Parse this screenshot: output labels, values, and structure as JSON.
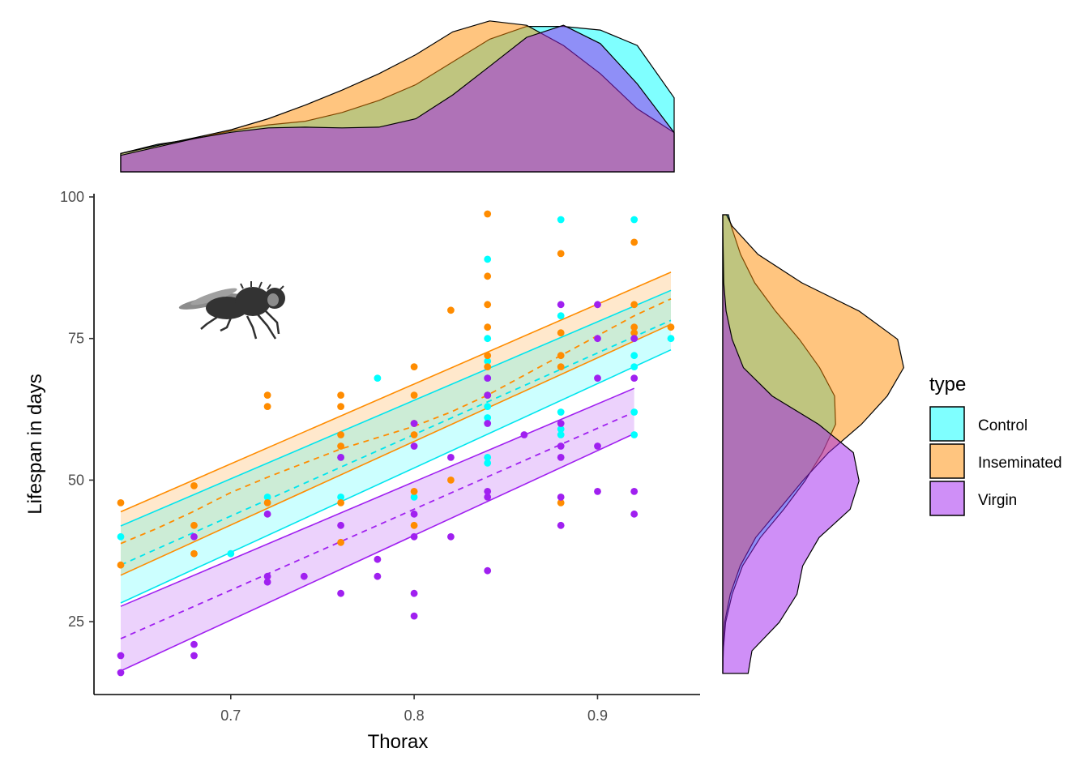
{
  "chart_data": {
    "type": "scatter",
    "title": "",
    "xlabel": "Thorax",
    "ylabel": "Lifespan in days",
    "xlim": [
      0.64,
      0.94
    ],
    "ylim": [
      16,
      100
    ],
    "x_ticks": [
      "0.7",
      "0.8",
      "0.9"
    ],
    "y_ticks": [
      "25",
      "50",
      "75",
      "100"
    ],
    "legend": {
      "title": "type",
      "placement": "right"
    },
    "grid": false,
    "series": [
      {
        "name": "Control",
        "color": "#00FFFF",
        "line_color": "#00E5EE",
        "points": [
          [
            0.64,
            40
          ],
          [
            0.7,
            37
          ],
          [
            0.72,
            47
          ],
          [
            0.76,
            47
          ],
          [
            0.76,
            54
          ],
          [
            0.78,
            68
          ],
          [
            0.8,
            47
          ],
          [
            0.84,
            89
          ],
          [
            0.84,
            75
          ],
          [
            0.84,
            71
          ],
          [
            0.84,
            68
          ],
          [
            0.84,
            65
          ],
          [
            0.84,
            63
          ],
          [
            0.84,
            61
          ],
          [
            0.84,
            54
          ],
          [
            0.84,
            53
          ],
          [
            0.88,
            96
          ],
          [
            0.88,
            79
          ],
          [
            0.88,
            62
          ],
          [
            0.88,
            59
          ],
          [
            0.88,
            58
          ],
          [
            0.92,
            96
          ],
          [
            0.92,
            75
          ],
          [
            0.92,
            72
          ],
          [
            0.92,
            70
          ],
          [
            0.92,
            62
          ],
          [
            0.92,
            58
          ],
          [
            0.94,
            75
          ]
        ],
        "fit": {
          "x": [
            0.64,
            0.94
          ],
          "y": [
            35.0,
            78.2
          ]
        },
        "ci_lower": {
          "x": [
            0.64,
            0.94
          ],
          "y": [
            28.3,
            73.0
          ]
        },
        "ci_upper": {
          "x": [
            0.64,
            0.94
          ],
          "y": [
            41.9,
            83.5
          ]
        }
      },
      {
        "name": "Inseminated",
        "color": "#FF8C00",
        "line_color": "#FF8C00",
        "points": [
          [
            0.64,
            46
          ],
          [
            0.64,
            35
          ],
          [
            0.68,
            49
          ],
          [
            0.68,
            42
          ],
          [
            0.68,
            37
          ],
          [
            0.72,
            65
          ],
          [
            0.72,
            63
          ],
          [
            0.72,
            46
          ],
          [
            0.76,
            65
          ],
          [
            0.76,
            63
          ],
          [
            0.76,
            58
          ],
          [
            0.76,
            56
          ],
          [
            0.76,
            46
          ],
          [
            0.76,
            39
          ],
          [
            0.8,
            70
          ],
          [
            0.8,
            65
          ],
          [
            0.8,
            60
          ],
          [
            0.8,
            58
          ],
          [
            0.8,
            48
          ],
          [
            0.8,
            42
          ],
          [
            0.82,
            80
          ],
          [
            0.82,
            50
          ],
          [
            0.84,
            97
          ],
          [
            0.84,
            86
          ],
          [
            0.84,
            81
          ],
          [
            0.84,
            77
          ],
          [
            0.84,
            72
          ],
          [
            0.84,
            70
          ],
          [
            0.84,
            65
          ],
          [
            0.88,
            90
          ],
          [
            0.88,
            76
          ],
          [
            0.88,
            72
          ],
          [
            0.88,
            70
          ],
          [
            0.88,
            46
          ],
          [
            0.92,
            92
          ],
          [
            0.92,
            81
          ],
          [
            0.92,
            77
          ],
          [
            0.92,
            76
          ],
          [
            0.94,
            77
          ]
        ],
        "fit": {
          "x": [
            0.64,
            0.66,
            0.68,
            0.7,
            0.72,
            0.74,
            0.76,
            0.78,
            0.8,
            0.82,
            0.84,
            0.86,
            0.88,
            0.9,
            0.92,
            0.94
          ],
          "y": [
            38.8,
            41.5,
            44.5,
            47.8,
            50.5,
            53.0,
            55.5,
            57.5,
            59.5,
            62.0,
            65.0,
            68.5,
            72.0,
            75.5,
            79.0,
            82.0
          ]
        },
        "ci_lower": {
          "x": [
            0.64,
            0.94
          ],
          "y": [
            33.2,
            77.5
          ]
        },
        "ci_upper": {
          "x": [
            0.64,
            0.94
          ],
          "y": [
            44.4,
            86.7
          ]
        }
      },
      {
        "name": "Virgin",
        "color": "#A020F0",
        "line_color": "#A020F0",
        "points": [
          [
            0.64,
            19
          ],
          [
            0.64,
            16
          ],
          [
            0.68,
            40
          ],
          [
            0.68,
            21
          ],
          [
            0.68,
            19
          ],
          [
            0.72,
            44
          ],
          [
            0.72,
            33
          ],
          [
            0.72,
            32
          ],
          [
            0.74,
            33
          ],
          [
            0.76,
            54
          ],
          [
            0.76,
            42
          ],
          [
            0.76,
            30
          ],
          [
            0.78,
            36
          ],
          [
            0.78,
            33
          ],
          [
            0.8,
            60
          ],
          [
            0.8,
            56
          ],
          [
            0.8,
            44
          ],
          [
            0.8,
            40
          ],
          [
            0.8,
            30
          ],
          [
            0.8,
            26
          ],
          [
            0.82,
            54
          ],
          [
            0.82,
            40
          ],
          [
            0.84,
            68
          ],
          [
            0.84,
            65
          ],
          [
            0.84,
            60
          ],
          [
            0.84,
            48
          ],
          [
            0.84,
            47
          ],
          [
            0.84,
            34
          ],
          [
            0.86,
            58
          ],
          [
            0.88,
            81
          ],
          [
            0.88,
            60
          ],
          [
            0.88,
            56
          ],
          [
            0.88,
            54
          ],
          [
            0.88,
            47
          ],
          [
            0.88,
            42
          ],
          [
            0.9,
            81
          ],
          [
            0.9,
            75
          ],
          [
            0.9,
            68
          ],
          [
            0.9,
            56
          ],
          [
            0.9,
            48
          ],
          [
            0.92,
            75
          ],
          [
            0.92,
            68
          ],
          [
            0.92,
            48
          ],
          [
            0.92,
            44
          ]
        ],
        "fit": {
          "x": [
            0.64,
            0.92
          ],
          "y": [
            22.0,
            62.0
          ]
        },
        "ci_lower": {
          "x": [
            0.64,
            0.92
          ],
          "y": [
            16.3,
            58.2
          ]
        },
        "ci_upper": {
          "x": [
            0.64,
            0.92
          ],
          "y": [
            27.7,
            66.2
          ]
        }
      }
    ],
    "marginal_top": {
      "orientation": "horizontal",
      "x": [
        0.64,
        0.66,
        0.68,
        0.7,
        0.72,
        0.74,
        0.76,
        0.78,
        0.8,
        0.82,
        0.84,
        0.86,
        0.88,
        0.9,
        0.92,
        0.94
      ],
      "densities": {
        "Control": [
          0.5,
          0.75,
          0.9,
          1.12,
          1.28,
          1.38,
          1.62,
          1.95,
          2.38,
          3.0,
          3.62,
          3.97,
          3.97,
          3.87,
          3.45,
          2.02
        ],
        "Inseminated": [
          0.5,
          0.72,
          0.93,
          1.15,
          1.45,
          1.82,
          2.23,
          2.68,
          3.2,
          3.82,
          4.12,
          4.0,
          3.45,
          2.68,
          1.72,
          1.07
        ],
        "Virgin": [
          0.45,
          0.68,
          0.91,
          1.08,
          1.2,
          1.22,
          1.2,
          1.22,
          1.45,
          2.1,
          2.88,
          3.67,
          4.0,
          3.5,
          2.4,
          1.07
        ]
      }
    },
    "marginal_right": {
      "orientation": "vertical",
      "y": [
        16,
        20,
        25,
        30,
        35,
        40,
        45,
        50,
        55,
        60,
        65,
        70,
        75,
        80,
        85,
        90,
        95,
        97
      ],
      "densities": {
        "Control": [
          0.0,
          0.01,
          0.06,
          0.2,
          0.42,
          0.8,
          1.3,
          1.75,
          2.12,
          2.4,
          2.38,
          2.06,
          1.63,
          1.12,
          0.68,
          0.38,
          0.18,
          0.12
        ],
        "Inseminated": [
          0.0,
          0.01,
          0.04,
          0.16,
          0.37,
          0.7,
          1.2,
          1.7,
          2.25,
          2.95,
          3.5,
          3.85,
          3.72,
          2.9,
          1.68,
          0.75,
          0.2,
          0.08
        ],
        "Virgin": [
          0.54,
          0.62,
          1.2,
          1.58,
          1.7,
          2.05,
          2.71,
          2.9,
          2.78,
          2.04,
          1.05,
          0.44,
          0.2,
          0.07,
          0.02,
          0.01,
          0.0,
          0.0
        ]
      }
    },
    "annotation": {
      "icon": "fly-icon"
    }
  }
}
